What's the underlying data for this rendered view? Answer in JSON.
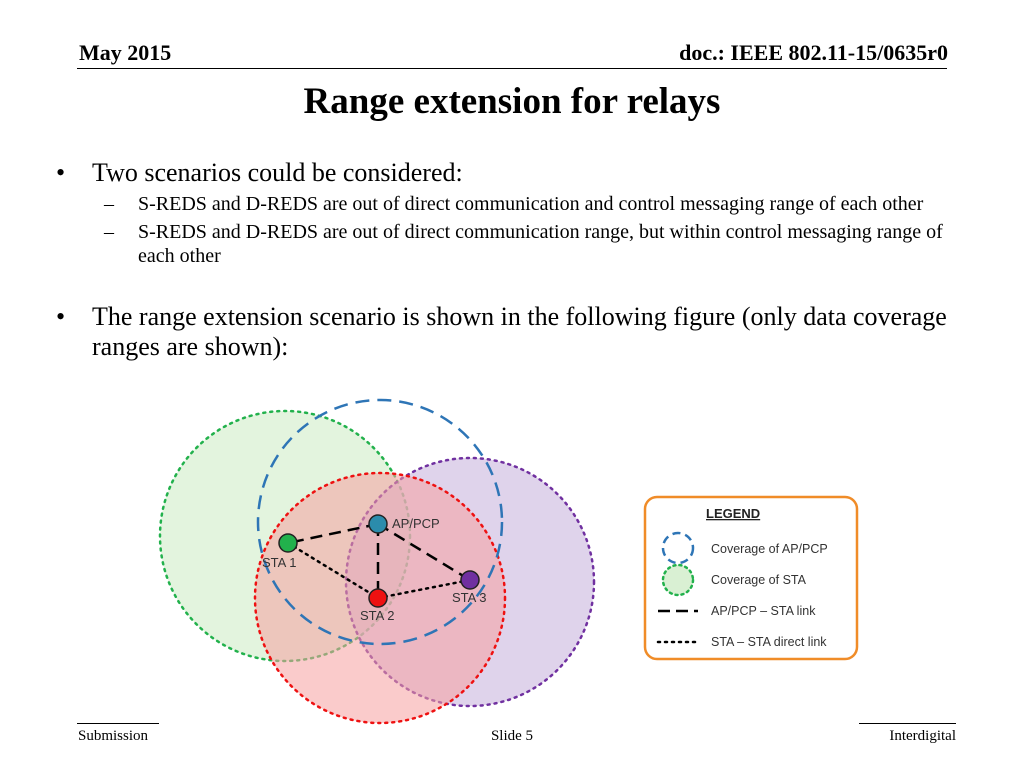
{
  "header": {
    "date": "May 2015",
    "doc_id": "doc.: IEEE 802.11-15/0635r0"
  },
  "title": "Range extension for relays",
  "bullets": [
    {
      "text": "Two scenarios could be considered:",
      "sub": [
        "S-REDS and D-REDS are out of direct communication and control messaging range of each other",
        "S-REDS and D-REDS are out of direct communication range, but within control messaging range of each other"
      ]
    },
    {
      "text": "The range extension scenario is shown in the following figure (only data coverage ranges are shown):"
    }
  ],
  "figure": {
    "nodes": {
      "ap": "AP/PCP",
      "sta1": "STA 1",
      "sta2": "STA 2",
      "sta3": "STA 3"
    },
    "legend": {
      "title": "LEGEND",
      "items": [
        "Coverage of AP/PCP",
        "Coverage of STA",
        "AP/PCP – STA link",
        "STA – STA direct link"
      ]
    },
    "colors": {
      "ap_coverage": "#2e75b6",
      "sta1": "#22b14c",
      "sta2": "#ee1111",
      "sta3": "#7030a0",
      "legend_border": "#f08c28"
    }
  },
  "footer": {
    "left": "Submission",
    "center": "Slide 5",
    "right": "Interdigital"
  }
}
